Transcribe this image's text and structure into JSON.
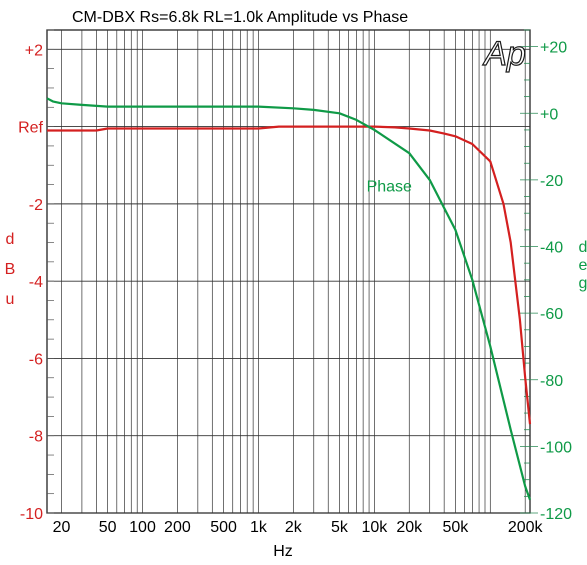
{
  "chart_data": {
    "type": "line",
    "title": "CM-DBX    Rs=6.8k  RL=1.0k    Amplitude vs Phase",
    "logo": "Ap",
    "xlabel": "Hz",
    "x_scale": "log",
    "xlim": [
      15,
      220000
    ],
    "x_ticks": [
      20,
      50,
      100,
      200,
      500,
      1000,
      2000,
      5000,
      10000,
      20000,
      50000,
      200000
    ],
    "x_tick_labels": [
      "20",
      "50",
      "100",
      "200",
      "500",
      "1k",
      "2k",
      "5k",
      "10k",
      "20k",
      "50k",
      "200k"
    ],
    "y_left": {
      "label_chars": [
        "d",
        "B",
        "u"
      ],
      "lim": [
        -10,
        2.5
      ],
      "ticks": [
        2,
        0,
        -2,
        -4,
        -6,
        -8,
        -10
      ],
      "tick_labels": [
        "+2",
        "Ref",
        "-2",
        "-4",
        "-6",
        "-8",
        "-10"
      ],
      "color": "#d42020"
    },
    "y_right": {
      "label_chars": [
        "d",
        "e",
        "g"
      ],
      "lim": [
        -120,
        25
      ],
      "ticks": [
        20,
        0,
        -20,
        -40,
        -60,
        -80,
        -100,
        -120
      ],
      "tick_labels": [
        "+20",
        "+0",
        "-20",
        "-40",
        "-60",
        "-80",
        "-100",
        "-120"
      ],
      "color": "#0f9a47"
    },
    "series": [
      {
        "name": "",
        "axis": "left",
        "color": "#d42020",
        "x": [
          15,
          20,
          30,
          40,
          50,
          70,
          100,
          200,
          500,
          1000,
          1500,
          2000,
          5000,
          10000,
          15000,
          20000,
          30000,
          40000,
          50000,
          70000,
          100000,
          130000,
          150000,
          180000,
          200000,
          220000
        ],
        "y": [
          -0.1,
          -0.1,
          -0.1,
          -0.1,
          -0.05,
          -0.05,
          -0.05,
          -0.05,
          -0.05,
          -0.05,
          0.0,
          0.0,
          0.0,
          0.0,
          -0.02,
          -0.05,
          -0.1,
          -0.18,
          -0.25,
          -0.45,
          -0.9,
          -2.0,
          -3.0,
          -5.0,
          -6.5,
          -7.7
        ]
      },
      {
        "name": "Phase",
        "axis": "right",
        "color": "#0f9a47",
        "x": [
          15,
          17,
          20,
          30,
          50,
          100,
          200,
          500,
          1000,
          2000,
          3000,
          5000,
          7000,
          10000,
          20000,
          30000,
          50000,
          70000,
          100000,
          150000,
          200000,
          220000
        ],
        "y": [
          4.5,
          3.5,
          3,
          2.5,
          2,
          2,
          2,
          2,
          2,
          1.5,
          1,
          0,
          -2,
          -5,
          -12,
          -20,
          -35,
          -50,
          -70,
          -95,
          -112,
          -116
        ]
      }
    ],
    "annotations": [
      {
        "text": "Phase",
        "x": 20000,
        "y": -22,
        "axis": "right",
        "color": "#0f9a47"
      }
    ],
    "grid": true
  }
}
